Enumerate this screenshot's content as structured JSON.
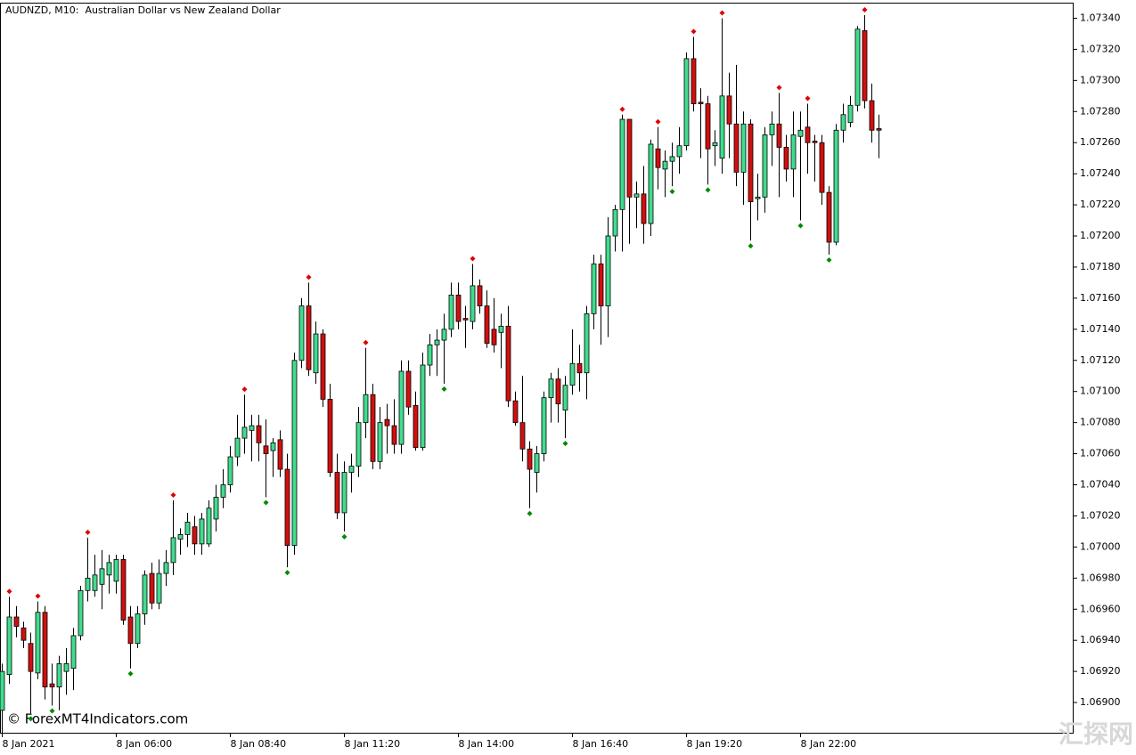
{
  "chart_data": {
    "type": "candlestick",
    "title": "AUDNZD, M10:  Australian Dollar vs New Zealand Dollar",
    "watermark": "© ForexMT4Indicators.com",
    "corner_mark": "汇探网",
    "up_color": "#41dc8e",
    "down_color": "#d10f0f",
    "outline_color": "#000000",
    "fractal_up_color": "#e00000",
    "fractal_down_color": "#008a00",
    "categories": [
      "8 Jan 2021",
      null,
      null,
      null,
      null,
      null,
      null,
      null,
      null,
      null,
      null,
      null,
      null,
      null,
      null,
      null,
      "8 Jan 06:00",
      null,
      null,
      null,
      null,
      null,
      null,
      null,
      null,
      null,
      null,
      null,
      null,
      null,
      null,
      null,
      "8 Jan 08:40",
      null,
      null,
      null,
      null,
      null,
      null,
      null,
      null,
      null,
      null,
      null,
      null,
      null,
      null,
      null,
      "8 Jan 11:20",
      null,
      null,
      null,
      null,
      null,
      null,
      null,
      null,
      null,
      null,
      null,
      null,
      null,
      null,
      null,
      "8 Jan 14:00",
      null,
      null,
      null,
      null,
      null,
      null,
      null,
      null,
      null,
      null,
      null,
      null,
      null,
      null,
      null,
      "8 Jan 16:40",
      null,
      null,
      null,
      null,
      null,
      null,
      null,
      null,
      null,
      null,
      null,
      null,
      null,
      null,
      null,
      "8 Jan 19:20",
      null,
      null,
      null,
      null,
      null,
      null,
      null,
      null,
      null,
      null,
      null,
      null,
      null,
      null,
      null,
      "8 Jan 22:00",
      null,
      null,
      null,
      null,
      null,
      null,
      null,
      null,
      null,
      null,
      null
    ],
    "open": [
      1.06895,
      1.06918,
      1.06955,
      1.06948,
      1.06938,
      1.06919,
      1.06958,
      1.06912,
      1.0691,
      1.0692,
      1.06922,
      1.06943,
      1.06972,
      1.06972,
      1.06976,
      1.06982,
      1.06978,
      1.06992,
      1.06955,
      1.06938,
      1.06957,
      1.06983,
      1.06964,
      1.06983,
      1.0699,
      1.07005,
      1.07008,
      1.07013,
      1.07002,
      1.07002,
      1.07018,
      1.07032,
      1.0704,
      1.07058,
      1.0707,
      1.07075,
      1.07078,
      1.07065,
      1.07062,
      1.07069,
      1.0705,
      1.07001,
      1.0712,
      1.07155,
      1.07112,
      1.07137,
      1.07095,
      1.07048,
      1.07022,
      1.07048,
      1.07052,
      1.0708,
      1.07098,
      1.07055,
      1.07082,
      1.07078,
      1.07066,
      1.07113,
      1.07091,
      1.07064,
      1.07117,
      1.0713,
      1.07133,
      1.0714,
      1.07162,
      1.07147,
      1.07145,
      1.07168,
      1.07155,
      1.0714,
      1.07138,
      1.07142,
      1.07094,
      1.0708,
      1.07063,
      1.07048,
      1.0706,
      1.07096,
      1.07108,
      1.07088,
      1.07104,
      1.07118,
      1.07112,
      1.0715,
      1.07182,
      1.07155,
      1.072,
      1.07217,
      1.07275,
      1.07225,
      1.07227,
      1.07208,
      1.07256,
      1.07243,
      1.07248,
      1.07251,
      1.07258,
      1.07314,
      1.07286,
      1.07285,
      1.07258,
      1.0725,
      1.0729,
      1.07272,
      1.07241,
      1.07272,
      1.07224,
      1.07225,
      1.07265,
      1.07272,
      1.07257,
      1.07243,
      1.07264,
      1.0727,
      1.07261,
      1.0726,
      1.07228,
      1.07196,
      1.07268,
      1.07273,
      1.07284,
      1.07332,
      1.07287,
      1.07269
    ],
    "high": [
      1.06925,
      1.06968,
      1.06962,
      1.06952,
      1.06945,
      1.06965,
      1.06962,
      1.06925,
      1.0693,
      1.06935,
      1.06948,
      1.06975,
      1.07006,
      1.06995,
      1.06998,
      1.06995,
      1.06995,
      1.06995,
      1.06962,
      1.06962,
      1.06985,
      1.0699,
      1.06992,
      1.06998,
      1.0703,
      1.07012,
      1.07022,
      1.0702,
      1.07022,
      1.0703,
      1.0704,
      1.0705,
      1.07065,
      1.07085,
      1.07098,
      1.07085,
      1.07085,
      1.07082,
      1.0707,
      1.07075,
      1.0706,
      1.07125,
      1.0716,
      1.0717,
      1.07145,
      1.0714,
      1.07105,
      1.0706,
      1.07055,
      1.0706,
      1.0709,
      1.07128,
      1.07105,
      1.0709,
      1.07092,
      1.07095,
      1.0712,
      1.0712,
      1.071,
      1.07125,
      1.07137,
      1.0714,
      1.0715,
      1.0717,
      1.0717,
      1.07155,
      1.07182,
      1.07172,
      1.07165,
      1.0716,
      1.0715,
      1.07155,
      1.071,
      1.0711,
      1.07068,
      1.07065,
      1.071,
      1.07112,
      1.07115,
      1.0711,
      1.0714,
      1.0713,
      1.07155,
      1.07188,
      1.07188,
      1.07212,
      1.0722,
      1.07278,
      1.07275,
      1.07235,
      1.07245,
      1.07262,
      1.0727,
      1.07255,
      1.0726,
      1.0727,
      1.07318,
      1.07328,
      1.07295,
      1.0729,
      1.07268,
      1.0734,
      1.07305,
      1.0731,
      1.0728,
      1.07275,
      1.0724,
      1.0727,
      1.0728,
      1.07292,
      1.07265,
      1.0728,
      1.0728,
      1.07285,
      1.07265,
      1.07265,
      1.07232,
      1.07272,
      1.07285,
      1.0729,
      1.07335,
      1.07342,
      1.07298,
      1.07278
    ],
    "low": [
      1.0688,
      1.06912,
      1.06942,
      1.06935,
      1.06893,
      1.06915,
      1.06902,
      1.06898,
      1.06895,
      1.06905,
      1.06908,
      1.0694,
      1.06965,
      1.06968,
      1.0696,
      1.0697,
      1.0697,
      1.0695,
      1.06922,
      1.06935,
      1.0695,
      1.0696,
      1.0696,
      1.06975,
      1.06982,
      1.06995,
      1.07,
      1.06995,
      1.06995,
      1.07,
      1.0701,
      1.07025,
      1.07035,
      1.07052,
      1.0706,
      1.07055,
      1.07055,
      1.07032,
      1.07045,
      1.07045,
      1.06987,
      1.06995,
      1.07115,
      1.0711,
      1.07105,
      1.0709,
      1.07045,
      1.07018,
      1.0701,
      1.07035,
      1.07045,
      1.0707,
      1.0705,
      1.0705,
      1.0706,
      1.0706,
      1.0706,
      1.07085,
      1.07062,
      1.07062,
      1.0711,
      1.0711,
      1.07105,
      1.07135,
      1.0714,
      1.07128,
      1.0714,
      1.0715,
      1.07128,
      1.07125,
      1.07115,
      1.0709,
      1.07078,
      1.07055,
      1.07025,
      1.07035,
      1.07055,
      1.0708,
      1.0708,
      1.0707,
      1.07098,
      1.071,
      1.07095,
      1.0714,
      1.0713,
      1.07135,
      1.0719,
      1.0719,
      1.07195,
      1.07205,
      1.07195,
      1.072,
      1.0723,
      1.07225,
      1.07232,
      1.0724,
      1.07255,
      1.0728,
      1.0725,
      1.07233,
      1.07245,
      1.0724,
      1.0725,
      1.07232,
      1.0722,
      1.07197,
      1.0721,
      1.07215,
      1.07245,
      1.07225,
      1.07235,
      1.07225,
      1.0721,
      1.0724,
      1.07235,
      1.0722,
      1.07188,
      1.07194,
      1.0726,
      1.0727,
      1.0728,
      1.07282,
      1.0726,
      1.0725
    ],
    "close": [
      1.0692,
      1.06955,
      1.06949,
      1.0694,
      1.0692,
      1.06958,
      1.0691,
      1.0691,
      1.06925,
      1.06925,
      1.06943,
      1.06972,
      1.0698,
      1.06982,
      1.06986,
      1.0699,
      1.06992,
      1.06953,
      1.06938,
      1.06957,
      1.06982,
      1.06964,
      1.06983,
      1.0699,
      1.07006,
      1.07008,
      1.07016,
      1.07002,
      1.07018,
      1.07025,
      1.07032,
      1.0704,
      1.07058,
      1.0707,
      1.07077,
      1.07078,
      1.07067,
      1.0706,
      1.07067,
      1.0705,
      1.07001,
      1.0712,
      1.07155,
      1.07114,
      1.07137,
      1.07095,
      1.07048,
      1.07022,
      1.07048,
      1.07052,
      1.0708,
      1.07098,
      1.07055,
      1.0708,
      1.07078,
      1.07066,
      1.07113,
      1.0709,
      1.07064,
      1.07117,
      1.0713,
      1.07133,
      1.0714,
      1.07162,
      1.07145,
      1.07146,
      1.07168,
      1.07155,
      1.07131,
      1.0713,
      1.07142,
      1.07094,
      1.0708,
      1.07063,
      1.0705,
      1.0706,
      1.07096,
      1.07108,
      1.07092,
      1.07104,
      1.07118,
      1.07112,
      1.0715,
      1.07182,
      1.07155,
      1.072,
      1.07217,
      1.07275,
      1.07225,
      1.07227,
      1.07208,
      1.07259,
      1.07244,
      1.07248,
      1.07251,
      1.07258,
      1.07314,
      1.07285,
      1.07285,
      1.07256,
      1.0726,
      1.0729,
      1.07272,
      1.07241,
      1.07272,
      1.07222,
      1.07225,
      1.07265,
      1.07272,
      1.07257,
      1.07243,
      1.07265,
      1.07268,
      1.0726,
      1.0726,
      1.07228,
      1.07196,
      1.07268,
      1.07278,
      1.07284,
      1.07333,
      1.07287,
      1.07268,
      1.07268
    ],
    "fractal_up": [
      null,
      1.06968,
      null,
      null,
      null,
      1.06965,
      null,
      null,
      null,
      null,
      null,
      null,
      1.07006,
      null,
      null,
      null,
      null,
      null,
      null,
      null,
      null,
      null,
      null,
      null,
      1.0703,
      null,
      null,
      null,
      null,
      null,
      null,
      null,
      null,
      null,
      1.07098,
      null,
      null,
      null,
      null,
      null,
      null,
      null,
      null,
      1.0717,
      null,
      null,
      null,
      null,
      null,
      null,
      null,
      1.07128,
      null,
      null,
      null,
      null,
      null,
      null,
      null,
      null,
      null,
      null,
      null,
      null,
      null,
      null,
      1.07182,
      null,
      null,
      null,
      null,
      null,
      null,
      null,
      null,
      null,
      null,
      null,
      null,
      null,
      null,
      null,
      null,
      null,
      null,
      null,
      null,
      1.07278,
      null,
      null,
      null,
      null,
      1.0727,
      null,
      null,
      null,
      null,
      1.07328,
      null,
      null,
      null,
      1.0734,
      null,
      null,
      null,
      null,
      null,
      null,
      null,
      1.07292,
      null,
      null,
      null,
      1.07285,
      null,
      null,
      null,
      null,
      null,
      null,
      null,
      1.07342,
      null,
      null
    ],
    "fractal_down": [
      null,
      null,
      null,
      null,
      1.06893,
      null,
      null,
      1.06898,
      null,
      null,
      null,
      null,
      null,
      null,
      null,
      null,
      null,
      null,
      1.06922,
      null,
      null,
      null,
      null,
      null,
      null,
      null,
      null,
      null,
      null,
      null,
      null,
      null,
      null,
      null,
      null,
      null,
      null,
      1.07032,
      null,
      null,
      1.06987,
      null,
      null,
      null,
      null,
      null,
      null,
      null,
      1.0701,
      null,
      null,
      null,
      null,
      null,
      null,
      null,
      null,
      null,
      null,
      null,
      null,
      null,
      1.07105,
      null,
      null,
      null,
      null,
      null,
      null,
      null,
      null,
      null,
      null,
      null,
      1.07025,
      null,
      null,
      null,
      null,
      1.0707,
      null,
      null,
      null,
      null,
      null,
      null,
      null,
      null,
      null,
      null,
      null,
      null,
      null,
      null,
      1.07232,
      null,
      null,
      null,
      null,
      1.07233,
      null,
      null,
      null,
      null,
      null,
      1.07197,
      null,
      null,
      null,
      null,
      null,
      null,
      1.0721,
      null,
      null,
      null,
      1.07188,
      null,
      null,
      null,
      null,
      null,
      null,
      null
    ],
    "ylim": [
      1.0688,
      1.0735
    ],
    "yticks": [
      {
        "value": 1.069,
        "label": "1.06900"
      },
      {
        "value": 1.0692,
        "label": "1.06920"
      },
      {
        "value": 1.0694,
        "label": "1.06940"
      },
      {
        "value": 1.0696,
        "label": "1.06960"
      },
      {
        "value": 1.0698,
        "label": "1.06980"
      },
      {
        "value": 1.07,
        "label": "1.07000"
      },
      {
        "value": 1.0702,
        "label": "1.07020"
      },
      {
        "value": 1.0704,
        "label": "1.07040"
      },
      {
        "value": 1.0706,
        "label": "1.07060"
      },
      {
        "value": 1.0708,
        "label": "1.07080"
      },
      {
        "value": 1.071,
        "label": "1.07100"
      },
      {
        "value": 1.0712,
        "label": "1.07120"
      },
      {
        "value": 1.0714,
        "label": "1.07140"
      },
      {
        "value": 1.0716,
        "label": "1.07160"
      },
      {
        "value": 1.0718,
        "label": "1.07180"
      },
      {
        "value": 1.072,
        "label": "1.07200"
      },
      {
        "value": 1.0722,
        "label": "1.07220"
      },
      {
        "value": 1.0724,
        "label": "1.07240"
      },
      {
        "value": 1.0726,
        "label": "1.07260"
      },
      {
        "value": 1.0728,
        "label": "1.07280"
      },
      {
        "value": 1.073,
        "label": "1.07300"
      },
      {
        "value": 1.0732,
        "label": "1.07320"
      },
      {
        "value": 1.0734,
        "label": "1.07340"
      }
    ]
  }
}
